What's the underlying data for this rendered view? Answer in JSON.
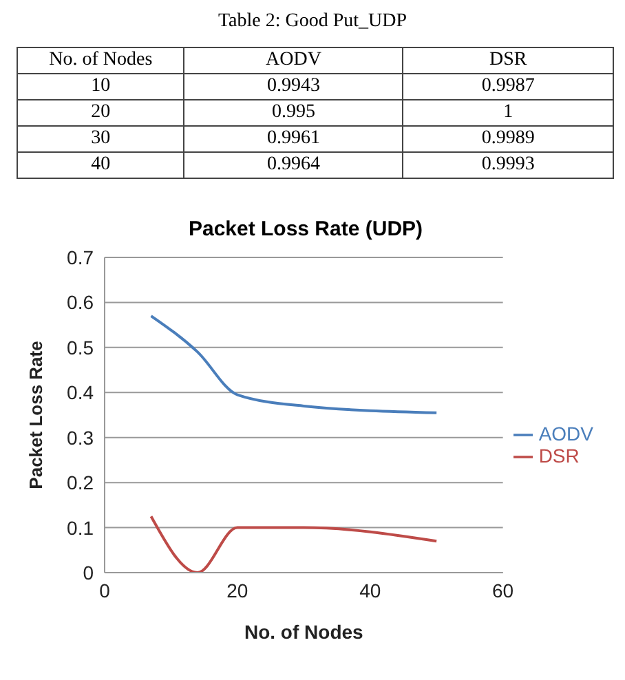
{
  "chart_data": [
    {
      "type": "heatmap",
      "data_labels": true,
      "title": "Table 2: Good Put_UDP",
      "ylabel": "No. of Nodes",
      "categories": [
        "AODV",
        "DSR"
      ],
      "y_categories": [
        "10",
        "20",
        "30",
        "40"
      ],
      "cells": [
        [
          0.9943,
          0.9987
        ],
        [
          0.995,
          1
        ],
        [
          0.9961,
          0.9989
        ],
        [
          0.9964,
          0.9993
        ]
      ]
    },
    {
      "type": "line",
      "title": "Packet Loss Rate (UDP)",
      "xlabel": "No. of Nodes",
      "ylabel": "Packet Loss Rate",
      "x": [
        7,
        14,
        20,
        30,
        50
      ],
      "series": [
        {
          "name": "AODV",
          "color": "#4a7ebb",
          "values": [
            0.57,
            0.49,
            0.395,
            0.37,
            0.355
          ]
        },
        {
          "name": "DSR",
          "color": "#be4b48",
          "values": [
            0.125,
            0,
            0.1,
            0.1,
            0.07
          ]
        }
      ],
      "xlim": [
        0,
        60
      ],
      "xticks": [
        0,
        20,
        40,
        60
      ],
      "ylim": [
        0,
        0.7
      ],
      "yticks": [
        0,
        0.1,
        0.2,
        0.3,
        0.4,
        0.5,
        0.6,
        0.7
      ],
      "grid": "y",
      "legend": "right",
      "marker": "none",
      "line_style": "solid"
    }
  ]
}
